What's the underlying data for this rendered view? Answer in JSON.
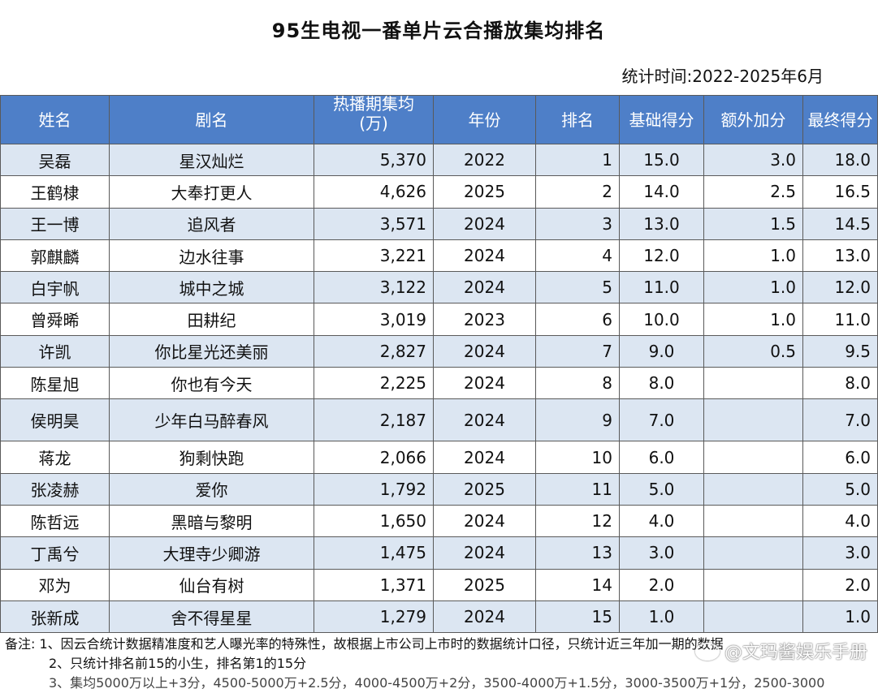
{
  "title": "95生电视一番单片云合播放集均排名",
  "stat_time": "统计时间:2022-2025年6月",
  "headers": [
    "姓名",
    "剧名",
    "热播期集均\n(万)",
    "年份",
    "排名",
    "基础得分",
    "额外加分",
    "最终得分"
  ],
  "rows": [
    [
      "吴磊",
      "星汉灿烂",
      "5,370",
      "2022",
      "1",
      "15.0",
      "3.0",
      "18.0"
    ],
    [
      "王鹤棣",
      "大奉打更人",
      "4,626",
      "2025",
      "2",
      "14.0",
      "2.5",
      "16.5"
    ],
    [
      "王一博",
      "追风者",
      "3,571",
      "2024",
      "3",
      "13.0",
      "1.5",
      "14.5"
    ],
    [
      "郭麒麟",
      "边水往事",
      "3,221",
      "2024",
      "4",
      "12.0",
      "1.0",
      "13.0"
    ],
    [
      "白宇帆",
      "城中之城",
      "3,122",
      "2024",
      "5",
      "11.0",
      "1.0",
      "12.0"
    ],
    [
      "曾舜晞",
      "田耕纪",
      "3,019",
      "2023",
      "6",
      "10.0",
      "1.0",
      "11.0"
    ],
    [
      "许凯",
      "你比星光还美丽",
      "2,827",
      "2024",
      "7",
      "9.0",
      "0.5",
      "9.5"
    ],
    [
      "陈星旭",
      "你也有今天",
      "2,225",
      "2024",
      "8",
      "8.0",
      "",
      "8.0"
    ],
    [
      "侯明昊",
      "少年白马醉春风",
      "2,187",
      "2024",
      "9",
      "7.0",
      "",
      "7.0"
    ],
    [
      "蒋龙",
      "狗剩快跑",
      "2,066",
      "2024",
      "10",
      "6.0",
      "",
      "6.0"
    ],
    [
      "张凌赫",
      "爱你",
      "1,792",
      "2025",
      "11",
      "5.0",
      "",
      "5.0"
    ],
    [
      "陈哲远",
      "黑暗与黎明",
      "1,650",
      "2024",
      "12",
      "4.0",
      "",
      "4.0"
    ],
    [
      "丁禹兮",
      "大理寺少卿游",
      "1,475",
      "2024",
      "13",
      "3.0",
      "",
      "3.0"
    ],
    [
      "邓为",
      "仙台有树",
      "1,371",
      "2025",
      "14",
      "2.0",
      "",
      "2.0"
    ],
    [
      "张新成",
      "舍不得星星",
      "1,279",
      "2024",
      "15",
      "1.0",
      "",
      "1.0"
    ]
  ],
  "notes": {
    "label": "备注:",
    "line1": "1、因云合统计数据精准度和艺人曝光率的特殊性，故根据上市公司上市时的数据统计口径，只统计近三年加一期的数据",
    "line2": "2、只统计排名前15的小生，排名第1的15分",
    "line3": "3、集均5000万以上+3分，4500-5000万+2.5分，4000-4500万+2分，3500-4000万+1.5分，3000-3500万+1分，2500-3000"
  },
  "watermark": "@文玛酱娱乐手册"
}
